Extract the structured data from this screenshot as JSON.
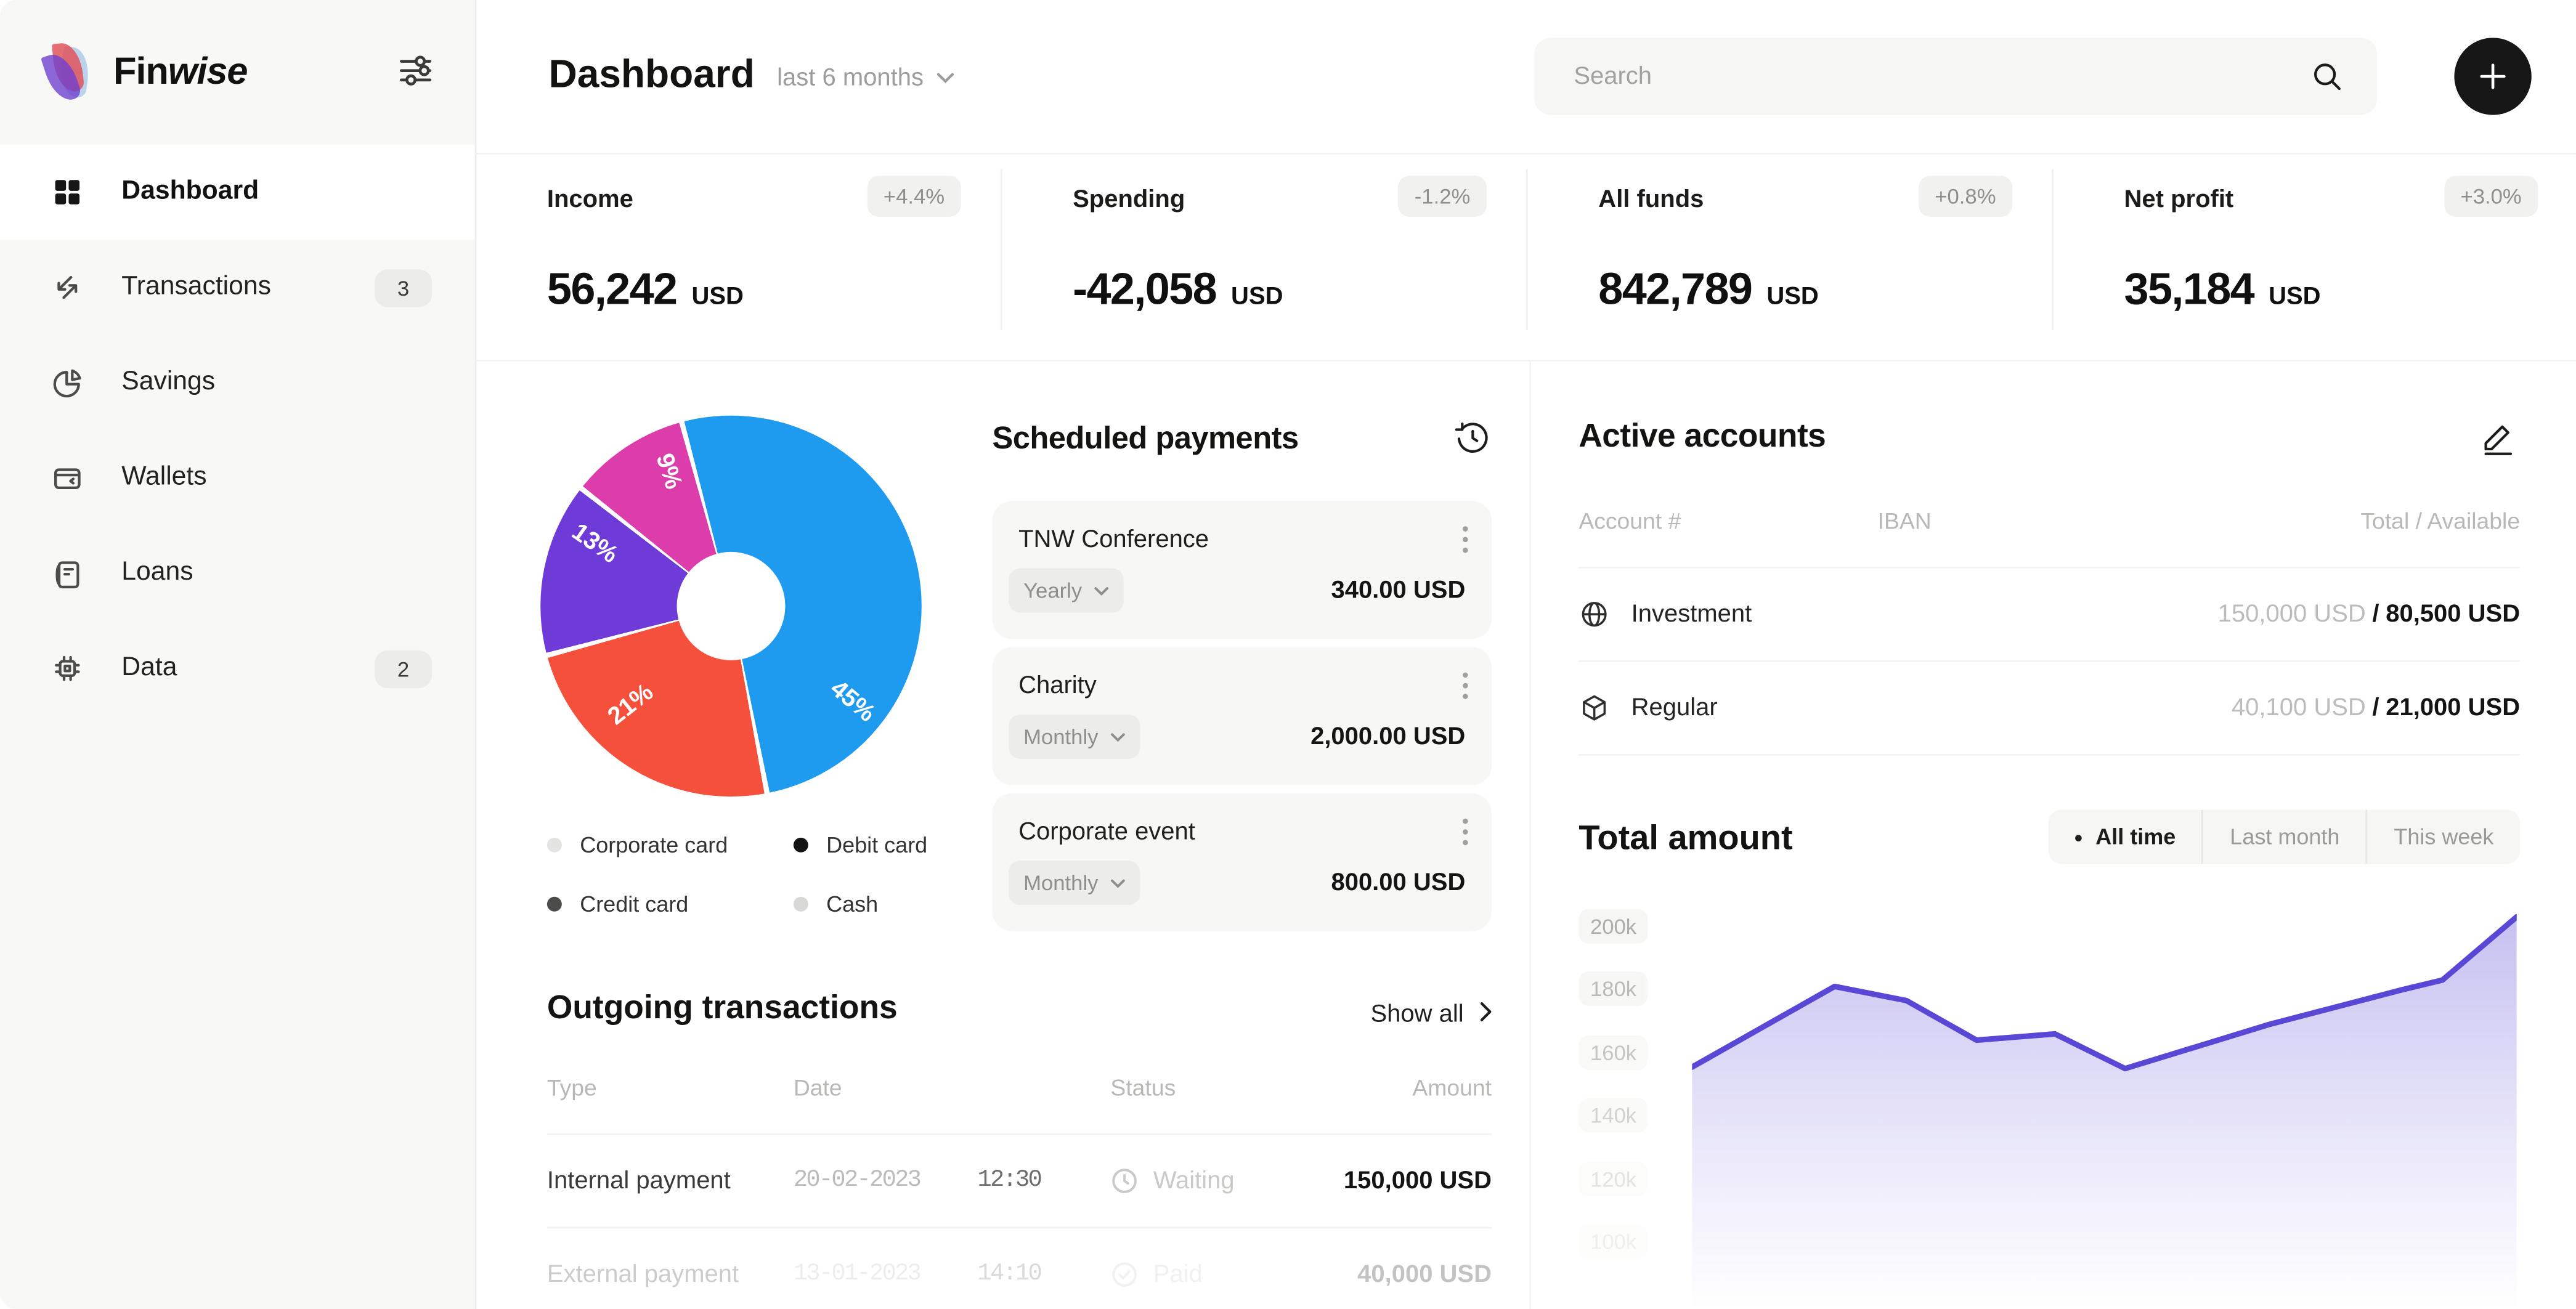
{
  "brand": {
    "name_bold": "Fin",
    "name_rest": "wise"
  },
  "sidebar": {
    "items": [
      {
        "label": "Dashboard",
        "badge": ""
      },
      {
        "label": "Transactions",
        "badge": "3"
      },
      {
        "label": "Savings",
        "badge": ""
      },
      {
        "label": "Wallets",
        "badge": ""
      },
      {
        "label": "Loans",
        "badge": ""
      },
      {
        "label": "Data",
        "badge": "2"
      }
    ]
  },
  "header": {
    "title": "Dashboard",
    "period_label": "last 6 months",
    "search_placeholder": "Search"
  },
  "stats": [
    {
      "label": "Income",
      "badge": "+4.4%",
      "value": "56,242",
      "currency": "USD"
    },
    {
      "label": "Spending",
      "badge": "-1.2%",
      "value": "-42,058",
      "currency": "USD"
    },
    {
      "label": "All funds",
      "badge": "+0.8%",
      "value": "842,789",
      "currency": "USD"
    },
    {
      "label": "Net profit",
      "badge": "+3.0%",
      "value": "35,184",
      "currency": "USD"
    }
  ],
  "legend": [
    {
      "label": "Corporate card",
      "dot": "#e3e3e1"
    },
    {
      "label": "Debit card",
      "dot": "#141414"
    },
    {
      "label": "Credit card",
      "dot": "#4c4c4a"
    },
    {
      "label": "Cash",
      "dot": "#d8d8d6"
    }
  ],
  "scheduled_payments": {
    "title": "Scheduled payments",
    "items": [
      {
        "name": "TNW Conference",
        "frequency": "Yearly",
        "amount": "340.00 USD"
      },
      {
        "name": "Charity",
        "frequency": "Monthly",
        "amount": "2,000.00 USD"
      },
      {
        "name": "Corporate event",
        "frequency": "Monthly",
        "amount": "800.00 USD"
      }
    ]
  },
  "active_accounts": {
    "title": "Active accounts",
    "headers": {
      "account": "Account #",
      "iban": "IBAN",
      "total": "Total / Available"
    },
    "rows": [
      {
        "name": "Investment",
        "total": "150,000 USD",
        "sep": "/",
        "available": "80,500 USD"
      },
      {
        "name": "Regular",
        "total": "40,100 USD",
        "sep": "/",
        "available": "21,000 USD"
      }
    ]
  },
  "total_amount": {
    "title": "Total amount",
    "tabs": [
      {
        "label": "All time",
        "active": true
      },
      {
        "label": "Last month",
        "active": false
      },
      {
        "label": "This week",
        "active": false
      }
    ]
  },
  "outgoing": {
    "title": "Outgoing transactions",
    "show_all": "Show all",
    "headers": {
      "type": "Type",
      "date": "Date",
      "status": "Status",
      "amount": "Amount"
    },
    "rows": [
      {
        "type": "Internal payment",
        "date": "20-02-2023",
        "time": "12:30",
        "status": "Waiting",
        "amount": "150,000 USD"
      },
      {
        "type": "External payment",
        "date": "13-01-2023",
        "time": "14:10",
        "status": "Paid",
        "amount": "40,000 USD"
      }
    ]
  },
  "chart_data": [
    {
      "type": "pie",
      "donut": true,
      "start_angle_deg": -15,
      "hole_ratio": 0.28,
      "segments": [
        {
          "name": "segment-blue",
          "value": 45,
          "label": "45%",
          "color": "#1e9bef"
        },
        {
          "name": "segment-red",
          "value": 21,
          "label": "21%",
          "color": "#f4503c"
        },
        {
          "name": "segment-purple",
          "value": 13,
          "label": "13%",
          "color": "#6f3bd8"
        },
        {
          "name": "segment-pink",
          "value": 9,
          "label": "9%",
          "color": "#dd3cab"
        }
      ],
      "legend": [
        "Corporate card",
        "Debit card",
        "Credit card",
        "Cash"
      ],
      "legend_position": "bottom"
    },
    {
      "type": "area",
      "title": "Total amount",
      "y_ticks": [
        "200k",
        "180k",
        "160k",
        "140k",
        "120k",
        "100k"
      ],
      "ylim_k": [
        100,
        207
      ],
      "grid": false,
      "line_color": "#5948d6",
      "points": [
        {
          "x": 0.0,
          "y_k": 155.5
        },
        {
          "x": 0.173,
          "y_k": 181
        },
        {
          "x": 0.26,
          "y_k": 176.5
        },
        {
          "x": 0.345,
          "y_k": 164
        },
        {
          "x": 0.44,
          "y_k": 166
        },
        {
          "x": 0.525,
          "y_k": 155
        },
        {
          "x": 0.7,
          "y_k": 169
        },
        {
          "x": 0.862,
          "y_k": 180
        },
        {
          "x": 0.91,
          "y_k": 183
        },
        {
          "x": 1.0,
          "y_k": 203
        }
      ]
    }
  ]
}
